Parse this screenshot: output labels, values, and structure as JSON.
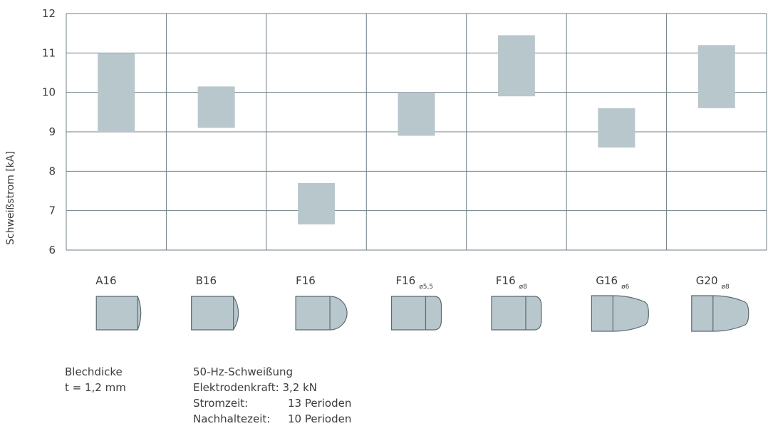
{
  "chart_data": {
    "type": "bar",
    "subtype": "floating-range",
    "ylabel": "Schweißstrom [kA]",
    "ylim": [
      6,
      12
    ],
    "yticks": [
      6,
      7,
      8,
      9,
      10,
      11,
      12
    ],
    "grid": true,
    "categories": [
      {
        "name": "A16",
        "sub": ""
      },
      {
        "name": "B16",
        "sub": ""
      },
      {
        "name": "F16",
        "sub": ""
      },
      {
        "name": "F16",
        "sub": "ø5,5"
      },
      {
        "name": "F16",
        "sub": "ø8"
      },
      {
        "name": "G16",
        "sub": "ø6"
      },
      {
        "name": "G20",
        "sub": "ø8"
      }
    ],
    "ranges": [
      [
        9.0,
        11.0
      ],
      [
        9.1,
        10.15
      ],
      [
        6.65,
        7.7
      ],
      [
        8.9,
        10.0
      ],
      [
        9.9,
        11.45
      ],
      [
        8.6,
        9.6
      ],
      [
        9.6,
        11.2
      ]
    ],
    "electrode_tips": [
      "A",
      "B",
      "F",
      "F-small",
      "F-small",
      "G",
      "G"
    ],
    "colors": {
      "bar": "#b8c7cc",
      "grid": "#6f7f86",
      "outline": "#5a6a70"
    }
  },
  "notes": {
    "sheet_label": "Blechdicke",
    "sheet_value": "t = 1,2 mm",
    "weld_type": "50-Hz-Schweißung",
    "rows": [
      {
        "key": "Elektrodenkraft:",
        "value": "3,2 kN"
      },
      {
        "key": "Stromzeit:",
        "value": "13 Perioden"
      },
      {
        "key": "Nachhaltezeit:",
        "value": "10 Perioden"
      }
    ]
  }
}
